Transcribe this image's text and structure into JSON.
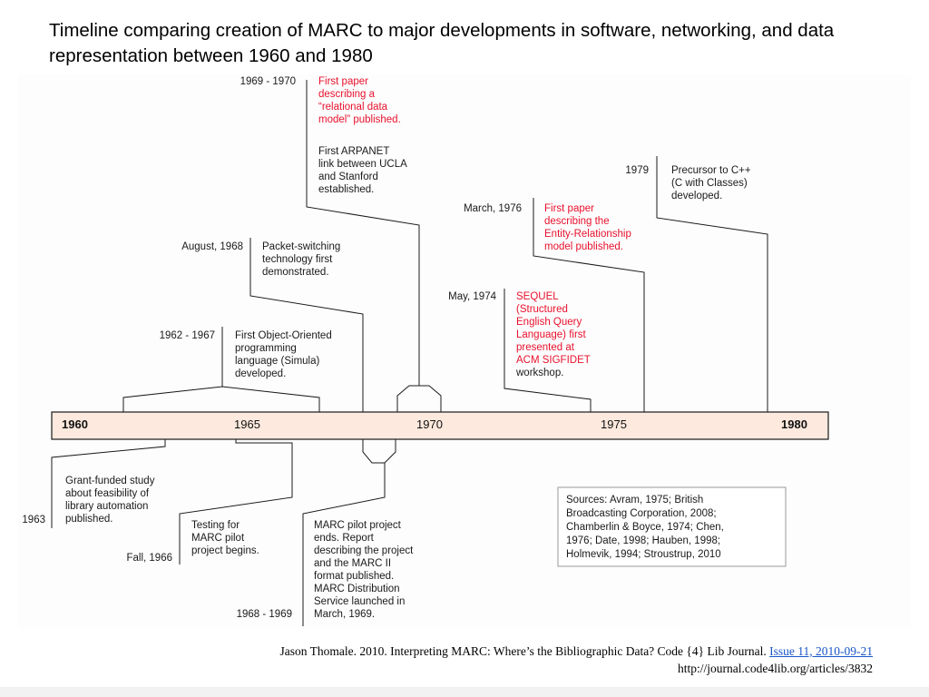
{
  "title": "Timeline comparing creation of MARC to major developments in software, networking, and data representation between 1960 and 1980",
  "axis": {
    "start": "1960",
    "tick_1965": "1965",
    "tick_1970": "1970",
    "tick_1975": "1975",
    "end": "1980"
  },
  "events_above": [
    {
      "date": "1969 - 1970",
      "lines": [
        "First paper",
        "describing a",
        "“relational data",
        "model” published."
      ],
      "highlight": true
    },
    {
      "date": "",
      "lines": [
        "First ARPANET",
        "link between UCLA",
        "and Stanford",
        "established."
      ],
      "highlight": false
    },
    {
      "date": "August, 1968",
      "lines": [
        "Packet-switching",
        "technology first",
        "demonstrated."
      ],
      "highlight": false
    },
    {
      "date": "1962 - 1967",
      "lines": [
        "First Object-Oriented",
        "programming",
        "language (Simula)",
        "developed."
      ],
      "highlight": false
    },
    {
      "date": "March, 1976",
      "lines": [
        "First paper",
        "describing the",
        "Entity-Relationship",
        "model published."
      ],
      "highlight": true
    },
    {
      "date": "May, 1974",
      "lines": [
        "SEQUEL",
        "(Structured",
        "English Query",
        "Language) first",
        "presented at",
        "ACM SIGFIDET",
        "workshop."
      ],
      "highlight": true
    },
    {
      "date": "1979",
      "lines": [
        "Precursor to C++",
        "(C with Classes)",
        "developed."
      ],
      "highlight": false
    }
  ],
  "events_below": [
    {
      "date": "1963",
      "lines": [
        "Grant-funded study",
        "about feasibility of",
        "library automation",
        "published."
      ]
    },
    {
      "date": "Fall, 1966",
      "lines": [
        "Testing for",
        "MARC pilot",
        "project begins."
      ]
    },
    {
      "date": "1968 - 1969",
      "lines": [
        "MARC pilot project",
        "ends. Report",
        "describing the project",
        "and the MARC II",
        "format published.",
        "MARC Distribution",
        "Service launched in",
        "March, 1969."
      ]
    }
  ],
  "sources": [
    "Sources: Avram, 1975; British",
    "Broadcasting Corporation, 2008;",
    "Chamberlin & Boyce, 1974; Chen,",
    "1976; Date, 1998; Hauben, 1998;",
    "Holmevik, 1994; Stroustrup, 2010"
  ],
  "colors": {
    "highlight": "#e8112d",
    "text": "#1a1a1a",
    "bar_fill": "#fde9dd",
    "line": "#1a1a1a",
    "link": "#1a55c8"
  },
  "citation": {
    "text": "Jason Thomale. 2010. Interpreting MARC: Where’s the Bibliographic Data?  Code {4} Lib Journal. ",
    "link": "Issue 11, 2010-09-21",
    "url": "http://journal.code4lib.org/articles/3832"
  }
}
